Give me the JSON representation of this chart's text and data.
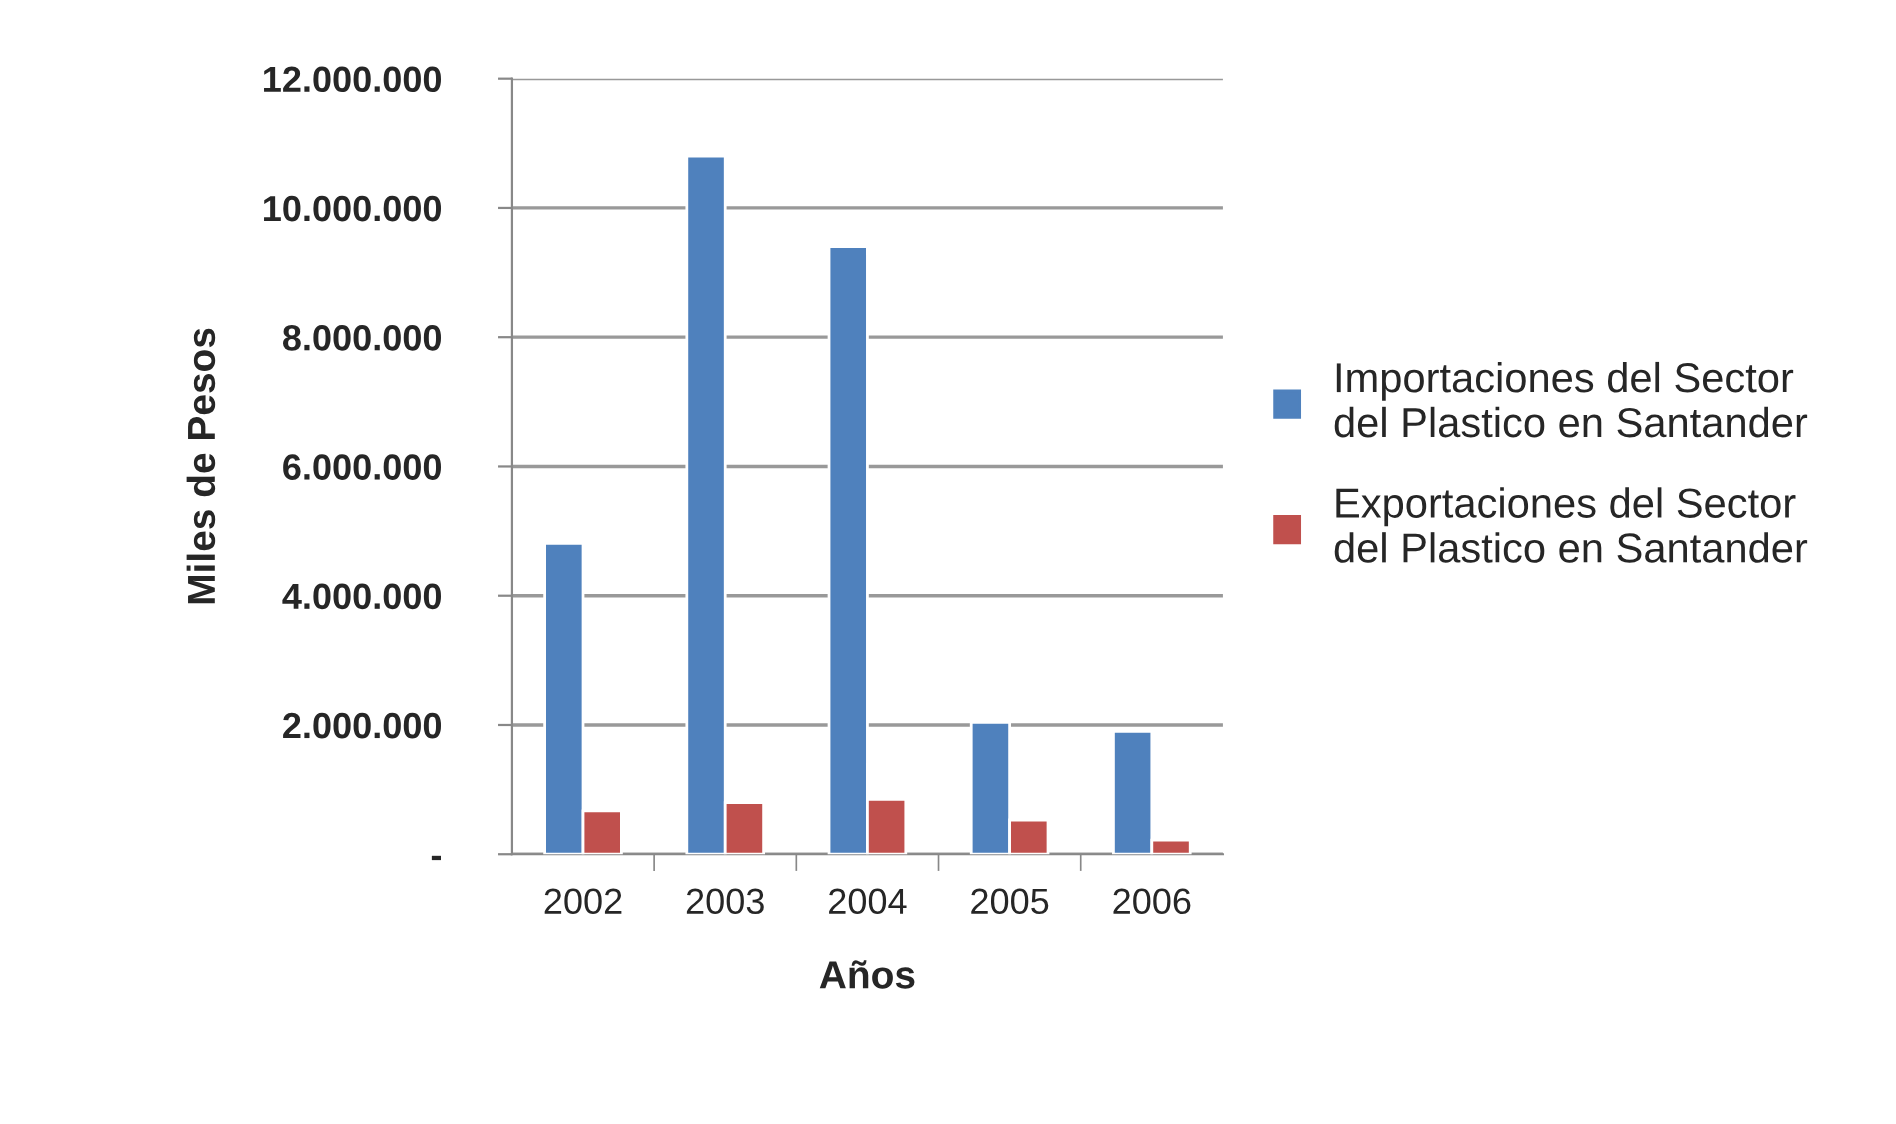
{
  "chart_data": {
    "type": "bar",
    "xlabel": "Años",
    "ylabel": "Miles de Pesos",
    "categories": [
      "2002",
      "2003",
      "2004",
      "2005",
      "2006"
    ],
    "series": [
      {
        "name": "Importaciones del Sector\ndel Plastico en Santander",
        "color": "#4f81bd",
        "values": [
          4810000,
          10800000,
          9400000,
          2040000,
          1900000
        ]
      },
      {
        "name": "Exportaciones del Sector\ndel Plastico en Santander",
        "color": "#c0504d",
        "values": [
          670000,
          800000,
          850000,
          530000,
          220000
        ]
      }
    ],
    "ylim": [
      0,
      12000000
    ],
    "yticks": [
      {
        "value": 0,
        "label": "-"
      },
      {
        "value": 2000000,
        "label": "2.000.000"
      },
      {
        "value": 4000000,
        "label": "4.000.000"
      },
      {
        "value": 6000000,
        "label": "6.000.000"
      },
      {
        "value": 8000000,
        "label": "8.000.000"
      },
      {
        "value": 10000000,
        "label": "10.000.000"
      },
      {
        "value": 12000000,
        "label": "12.000.000"
      }
    ],
    "grid": "y",
    "legend": "right"
  }
}
